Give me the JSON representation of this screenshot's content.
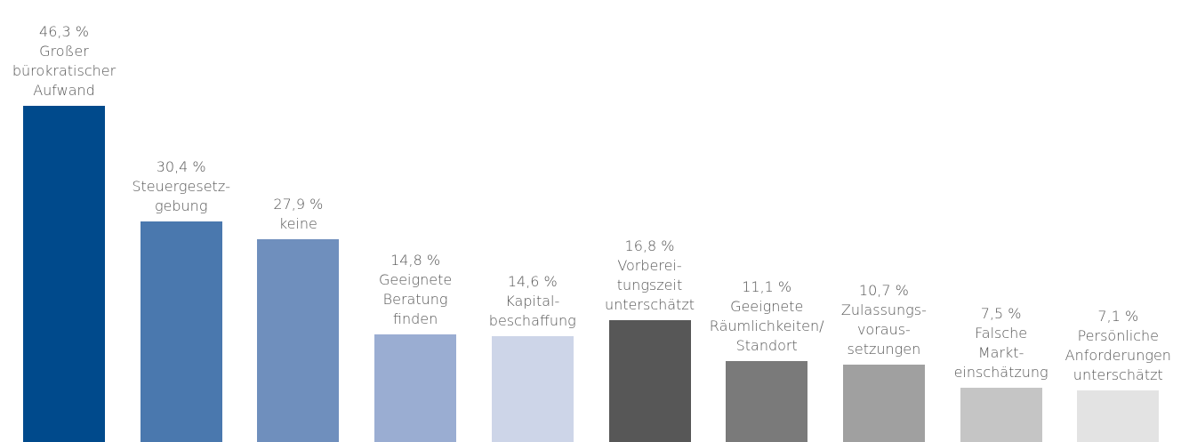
{
  "chart_data": {
    "type": "bar",
    "categories": [
      "Großer\nbürokratischer\nAufwand",
      "Steuergesetz-\ngebung",
      "keine",
      "Geeignete\nBeratung\nfinden",
      "Kapital-\nbeschaffung",
      "Vorberei-\ntungszeit\nunterschätzt",
      "Geeignete\nRäumlichkeiten/\nStandort",
      "Zulassungs-\nvoraus-\nsetzungen",
      "Falsche\nMarkt-\neinschätzung",
      "Persönliche\nAnforderungen\nunterschätzt"
    ],
    "values": [
      46.3,
      30.4,
      27.9,
      14.8,
      14.6,
      16.8,
      11.1,
      10.7,
      7.5,
      7.1
    ],
    "value_labels": [
      "46,3 %",
      "30,4 %",
      "27,9 %",
      "14,8 %",
      "14,6 %",
      "16,8 %",
      "11,1 %",
      "10,7 %",
      "7,5 %",
      "7,1 %"
    ],
    "colors": [
      "#004a8c",
      "#4a78ae",
      "#6f8fbd",
      "#9aadd2",
      "#cdd5e8",
      "#575757",
      "#7a7a7a",
      "#a0a0a0",
      "#c5c5c5",
      "#e3e3e3"
    ]
  }
}
